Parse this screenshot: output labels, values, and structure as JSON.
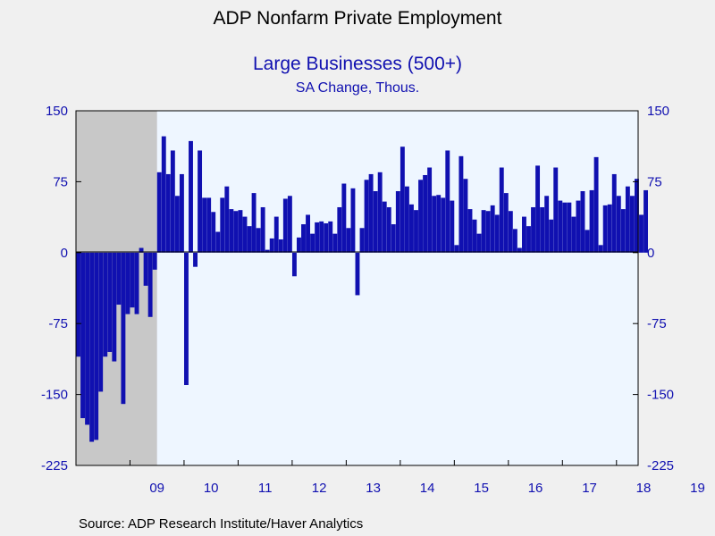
{
  "header": {
    "title": "ADP Nonfarm Private Employment",
    "subtitle": "Large Businesses (500+)",
    "units": "SA Change, Thous."
  },
  "footer": {
    "source": "Source:  ADP Research Institute/Haver Analytics"
  },
  "chart_data": {
    "type": "bar",
    "title": "ADP Nonfarm Private Employment",
    "subtitle": "Large Businesses (500+)",
    "units": "SA Change, Thous.",
    "x_tick_labels": [
      "09",
      "10",
      "11",
      "12",
      "13",
      "14",
      "15",
      "16",
      "17",
      "18",
      "19"
    ],
    "y_ticks": [
      150,
      75,
      0,
      -75,
      -150,
      -225
    ],
    "ylim": [
      -225,
      150
    ],
    "start": "2008-01",
    "grid": false,
    "axes": "left-and-right",
    "recession_shading": {
      "from": "2008-01",
      "to": "2009-06",
      "color": "#c8c8c8"
    },
    "bar_color": "#1010b0",
    "plot_background": "#eef6ff",
    "series": [
      {
        "values": [
          -110,
          -175,
          -182,
          -200,
          -198,
          -147,
          -110,
          -105,
          -115,
          -55,
          -160,
          -65,
          -58,
          -65,
          5,
          -35,
          -68,
          -18,
          85,
          123,
          83,
          108,
          60,
          83,
          -140,
          118,
          -15,
          108,
          58,
          58,
          43,
          22,
          58,
          70,
          46,
          44,
          45,
          38,
          28,
          63,
          26,
          48,
          3,
          15,
          38,
          14,
          57,
          60,
          -25,
          16,
          30,
          40,
          20,
          32,
          33,
          31,
          33,
          20,
          48,
          73,
          26,
          68,
          -45,
          26,
          77,
          83,
          65,
          85,
          54,
          48,
          30,
          65,
          112,
          70,
          51,
          45,
          77,
          82,
          90,
          60,
          61,
          58,
          108,
          55,
          8,
          102,
          78,
          46,
          35,
          20,
          45,
          44,
          50,
          40,
          90,
          63,
          44,
          25,
          5,
          38,
          28,
          48,
          92,
          48,
          60,
          35,
          90,
          55,
          53,
          53,
          38,
          55,
          65,
          24,
          66,
          101,
          8,
          50,
          51,
          83,
          60,
          46,
          70,
          60,
          78,
          40,
          66
        ]
      }
    ]
  }
}
